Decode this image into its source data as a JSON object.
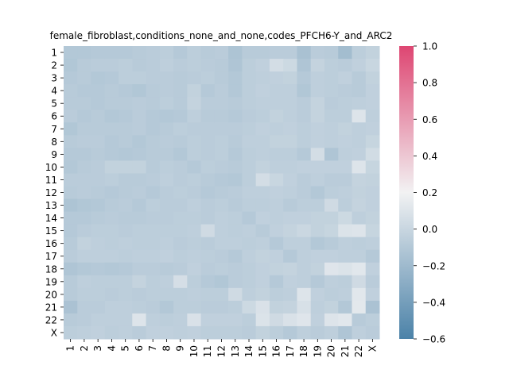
{
  "chart_data": {
    "type": "heatmap",
    "title": "female_fibroblast,conditions_none_and_none,codes_PFCH6-Y_and_ARC2",
    "xlabel": "",
    "ylabel": "",
    "x_labels": [
      "1",
      "2",
      "3",
      "4",
      "5",
      "6",
      "7",
      "8",
      "9",
      "10",
      "11",
      "12",
      "13",
      "14",
      "15",
      "16",
      "17",
      "18",
      "19",
      "20",
      "21",
      "22",
      "X"
    ],
    "y_labels": [
      "1",
      "2",
      "3",
      "4",
      "5",
      "6",
      "7",
      "8",
      "9",
      "10",
      "11",
      "12",
      "13",
      "14",
      "15",
      "16",
      "17",
      "18",
      "19",
      "20",
      "21",
      "22",
      "X"
    ],
    "colorbar": {
      "range": [
        -0.6,
        1.0
      ],
      "ticks": [
        "1.0",
        "0.8",
        "0.6",
        "0.4",
        "0.2",
        "0.0",
        "−0.2",
        "−0.4",
        "−0.6"
      ],
      "colors": {
        "low": "#4b82a8",
        "mid": "#f2f2f3",
        "high": "#de4672"
      }
    },
    "values": [
      [
        -0.1,
        -0.1,
        -0.09,
        -0.09,
        -0.09,
        -0.08,
        -0.07,
        -0.06,
        -0.09,
        -0.06,
        -0.08,
        -0.07,
        -0.13,
        -0.08,
        -0.08,
        -0.07,
        -0.07,
        -0.15,
        -0.07,
        -0.08,
        -0.18,
        -0.06,
        -0.03
      ],
      [
        -0.11,
        -0.08,
        -0.07,
        -0.07,
        -0.06,
        -0.08,
        -0.07,
        -0.05,
        -0.07,
        -0.06,
        -0.07,
        -0.08,
        -0.12,
        -0.06,
        -0.04,
        0.05,
        0.02,
        -0.12,
        -0.02,
        -0.06,
        -0.07,
        -0.04,
        0.0
      ],
      [
        -0.09,
        -0.08,
        -0.1,
        -0.09,
        -0.06,
        -0.06,
        -0.07,
        -0.07,
        -0.08,
        -0.07,
        -0.06,
        -0.08,
        -0.1,
        -0.06,
        -0.05,
        -0.04,
        -0.03,
        -0.09,
        -0.05,
        -0.06,
        -0.04,
        -0.08,
        -0.03
      ],
      [
        -0.08,
        -0.09,
        -0.09,
        -0.08,
        -0.09,
        -0.11,
        -0.08,
        -0.07,
        -0.08,
        -0.03,
        -0.09,
        -0.07,
        -0.1,
        -0.06,
        -0.04,
        -0.05,
        -0.05,
        -0.11,
        -0.05,
        -0.06,
        -0.07,
        -0.08,
        -0.04
      ],
      [
        -0.08,
        -0.08,
        -0.09,
        -0.08,
        -0.08,
        -0.07,
        -0.08,
        -0.06,
        -0.08,
        -0.02,
        -0.07,
        -0.07,
        -0.08,
        -0.06,
        -0.05,
        -0.05,
        -0.05,
        -0.07,
        -0.02,
        -0.07,
        -0.06,
        -0.05,
        -0.04
      ],
      [
        -0.07,
        -0.09,
        -0.08,
        -0.1,
        -0.09,
        -0.07,
        -0.09,
        -0.1,
        -0.09,
        -0.05,
        -0.08,
        -0.08,
        -0.09,
        -0.07,
        -0.06,
        -0.03,
        -0.05,
        -0.07,
        -0.02,
        -0.06,
        -0.06,
        0.1,
        -0.05
      ],
      [
        -0.11,
        -0.08,
        -0.08,
        -0.08,
        -0.08,
        -0.07,
        -0.09,
        -0.08,
        -0.06,
        -0.07,
        -0.07,
        -0.07,
        -0.07,
        -0.06,
        -0.04,
        -0.05,
        -0.04,
        -0.06,
        -0.04,
        -0.05,
        -0.03,
        -0.05,
        -0.04
      ],
      [
        -0.08,
        -0.07,
        -0.07,
        -0.09,
        -0.08,
        -0.1,
        -0.08,
        -0.07,
        -0.08,
        -0.06,
        -0.07,
        -0.06,
        -0.08,
        -0.05,
        -0.05,
        -0.03,
        -0.03,
        -0.06,
        -0.04,
        -0.05,
        -0.04,
        -0.05,
        -0.01
      ],
      [
        -0.09,
        -0.09,
        -0.08,
        -0.09,
        -0.1,
        -0.09,
        -0.08,
        -0.08,
        -0.1,
        -0.06,
        -0.07,
        -0.06,
        -0.09,
        -0.06,
        -0.05,
        -0.06,
        -0.06,
        -0.09,
        0.05,
        -0.12,
        -0.05,
        -0.04,
        0.04
      ],
      [
        -0.1,
        -0.08,
        -0.07,
        -0.03,
        -0.03,
        -0.03,
        -0.08,
        -0.06,
        -0.07,
        -0.09,
        -0.06,
        -0.07,
        -0.08,
        -0.06,
        -0.03,
        -0.05,
        -0.05,
        -0.04,
        -0.04,
        -0.04,
        -0.04,
        0.1,
        -0.01
      ],
      [
        -0.07,
        -0.07,
        -0.07,
        -0.06,
        -0.08,
        -0.08,
        -0.07,
        -0.05,
        -0.07,
        -0.06,
        -0.08,
        -0.09,
        -0.1,
        -0.06,
        0.05,
        0.0,
        -0.04,
        -0.07,
        -0.05,
        -0.07,
        -0.07,
        -0.02,
        -0.03
      ],
      [
        -0.08,
        -0.07,
        -0.08,
        -0.09,
        -0.08,
        -0.07,
        -0.09,
        -0.07,
        -0.06,
        -0.07,
        -0.09,
        -0.08,
        -0.07,
        -0.05,
        -0.05,
        -0.04,
        -0.05,
        -0.07,
        -0.1,
        -0.06,
        -0.05,
        -0.03,
        -0.04
      ],
      [
        -0.13,
        -0.11,
        -0.1,
        -0.08,
        -0.07,
        -0.09,
        -0.06,
        -0.07,
        -0.07,
        -0.05,
        -0.07,
        -0.06,
        -0.08,
        -0.06,
        -0.06,
        -0.05,
        -0.08,
        -0.06,
        -0.06,
        0.03,
        -0.06,
        -0.02,
        -0.04
      ],
      [
        -0.09,
        -0.09,
        -0.08,
        -0.07,
        -0.08,
        -0.08,
        -0.07,
        -0.07,
        -0.06,
        -0.06,
        -0.07,
        -0.05,
        -0.06,
        -0.09,
        -0.04,
        -0.05,
        -0.04,
        -0.04,
        -0.03,
        -0.03,
        0.02,
        -0.05,
        -0.03
      ],
      [
        -0.09,
        -0.07,
        -0.06,
        -0.06,
        -0.07,
        -0.06,
        -0.06,
        -0.06,
        -0.06,
        -0.05,
        0.03,
        -0.05,
        -0.06,
        -0.05,
        -0.08,
        -0.04,
        -0.02,
        0.01,
        -0.03,
        -0.01,
        0.09,
        0.1,
        -0.01
      ],
      [
        -0.08,
        -0.03,
        -0.05,
        -0.06,
        -0.05,
        -0.06,
        -0.06,
        -0.05,
        -0.07,
        -0.06,
        -0.07,
        -0.05,
        -0.05,
        -0.06,
        -0.05,
        -0.09,
        -0.05,
        -0.05,
        -0.1,
        -0.08,
        -0.05,
        -0.06,
        -0.05
      ],
      [
        -0.07,
        -0.05,
        -0.05,
        -0.05,
        -0.06,
        -0.05,
        -0.05,
        -0.04,
        -0.06,
        -0.05,
        -0.06,
        -0.07,
        -0.09,
        -0.05,
        -0.03,
        -0.04,
        -0.09,
        -0.05,
        -0.04,
        -0.04,
        -0.05,
        -0.05,
        -0.09
      ],
      [
        -0.12,
        -0.1,
        -0.09,
        -0.1,
        -0.09,
        -0.07,
        -0.07,
        -0.08,
        -0.07,
        -0.04,
        -0.07,
        -0.06,
        -0.07,
        -0.06,
        -0.04,
        -0.03,
        -0.02,
        -0.05,
        -0.03,
        0.11,
        0.09,
        0.12,
        -0.04
      ],
      [
        -0.08,
        -0.05,
        -0.06,
        -0.06,
        -0.06,
        -0.02,
        -0.06,
        -0.05,
        0.06,
        -0.06,
        -0.09,
        -0.11,
        -0.07,
        -0.06,
        -0.04,
        -0.09,
        -0.04,
        -0.05,
        -0.09,
        -0.05,
        -0.06,
        0.03,
        -0.07
      ],
      [
        -0.08,
        -0.06,
        -0.06,
        -0.07,
        -0.06,
        -0.07,
        -0.06,
        -0.06,
        -0.06,
        -0.05,
        -0.06,
        -0.06,
        0.03,
        -0.05,
        -0.03,
        -0.06,
        -0.05,
        0.1,
        -0.04,
        -0.06,
        -0.05,
        0.12,
        -0.04
      ],
      [
        -0.14,
        -0.07,
        -0.07,
        -0.05,
        -0.05,
        -0.06,
        -0.07,
        -0.1,
        -0.06,
        -0.06,
        -0.07,
        -0.07,
        -0.06,
        0.02,
        0.08,
        -0.03,
        -0.02,
        0.07,
        -0.05,
        -0.03,
        -0.1,
        0.13,
        -0.14
      ],
      [
        -0.08,
        -0.07,
        -0.05,
        -0.05,
        -0.05,
        0.1,
        -0.05,
        -0.06,
        -0.05,
        0.08,
        -0.04,
        -0.04,
        -0.04,
        -0.06,
        0.09,
        0.03,
        0.08,
        0.11,
        -0.04,
        0.1,
        0.12,
        -0.08,
        -0.06
      ],
      [
        -0.06,
        -0.05,
        -0.04,
        -0.06,
        -0.05,
        -0.07,
        -0.04,
        -0.04,
        -0.05,
        -0.04,
        -0.06,
        -0.06,
        -0.06,
        -0.07,
        -0.03,
        -0.06,
        -0.09,
        -0.05,
        -0.07,
        -0.05,
        -0.12,
        -0.05,
        -0.07
      ]
    ]
  }
}
